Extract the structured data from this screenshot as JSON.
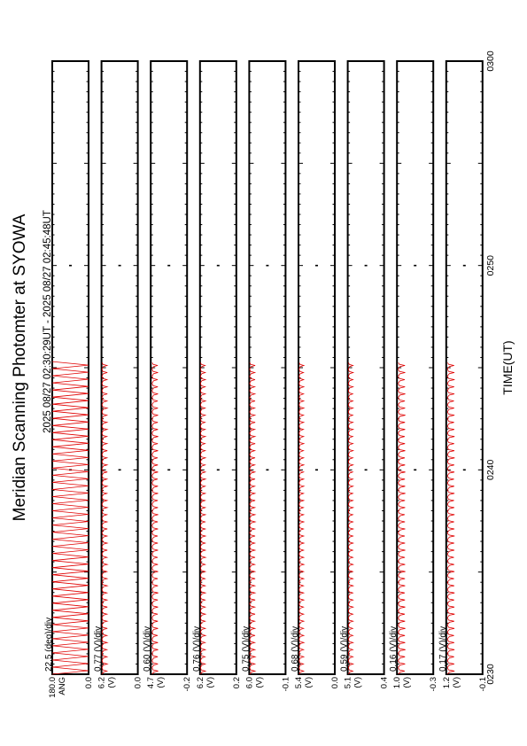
{
  "title": "Meridian Scanning Photomter at SYOWA",
  "time_range": "2025 08/27 02:30:29UT - 2025 08/27 02:45:48UT",
  "colors": {
    "trace": "#e00000",
    "frame": "#000000"
  },
  "chart_data": {
    "type": "line",
    "orientation": "rotated-90",
    "title": "Meridian Scanning Photomter at SYOWA",
    "xlabel": "TIME(UT)",
    "x_ticks": [
      "0230",
      "0240",
      "0250",
      "0300"
    ],
    "x_range_minutes": [
      0,
      30
    ],
    "data_end_minute": 15.3,
    "scan_count": 44,
    "panels": [
      {
        "name": "angle",
        "scale": "22.5 (deg)/div",
        "ticks": [
          "180.0",
          "0.0"
        ],
        "unit_glyphs": "ANG",
        "range": [
          0.0,
          180.0
        ],
        "baseline": 0.0,
        "peak": 180.0,
        "shape": "triangle"
      },
      {
        "name": "ch1",
        "scale": "0.77 (V)/div",
        "ticks": [
          "6.2",
          "0.0"
        ],
        "unit_glyphs": "(V)",
        "range": [
          0.0,
          6.2
        ],
        "baseline": 0.1,
        "peak": 1.0,
        "shape": "spike"
      },
      {
        "name": "ch2",
        "scale": "0.60 (V)/div",
        "ticks": [
          "4.7",
          "-0.2"
        ],
        "unit_glyphs": "(V)",
        "range": [
          -0.2,
          4.7
        ],
        "baseline": 0.0,
        "peak": 0.8,
        "shape": "spike"
      },
      {
        "name": "ch3",
        "scale": "0.76 (V)/div",
        "ticks": [
          "6.2",
          "0.2"
        ],
        "unit_glyphs": "(V)",
        "range": [
          0.2,
          6.2
        ],
        "baseline": 0.3,
        "peak": 1.1,
        "shape": "spike"
      },
      {
        "name": "ch4",
        "scale": "0.75 (V)/div",
        "ticks": [
          "6.0",
          "-0.1"
        ],
        "unit_glyphs": "(V)",
        "range": [
          -0.1,
          6.0
        ],
        "baseline": 0.0,
        "peak": 0.9,
        "shape": "spike"
      },
      {
        "name": "ch5",
        "scale": "0.68 (V)/div",
        "ticks": [
          "5.4",
          "0.0"
        ],
        "unit_glyphs": "(V)",
        "range": [
          0.0,
          5.4
        ],
        "baseline": 0.1,
        "peak": 0.8,
        "shape": "spike"
      },
      {
        "name": "ch6",
        "scale": "0.59 (V)/div",
        "ticks": [
          "5.1",
          "0.4"
        ],
        "unit_glyphs": "(V)",
        "range": [
          0.4,
          5.1
        ],
        "baseline": 0.5,
        "peak": 1.1,
        "shape": "spike"
      },
      {
        "name": "ch7",
        "scale": "0.16 (V)/div",
        "ticks": [
          "1.0",
          "-0.3"
        ],
        "unit_glyphs": "(V)",
        "range": [
          -0.3,
          1.0
        ],
        "baseline": -0.25,
        "peak": 0.0,
        "shape": "spike"
      },
      {
        "name": "ch8",
        "scale": "0.17 (V)/div",
        "ticks": [
          "1.2",
          "-0.1"
        ],
        "unit_glyphs": "(V)",
        "range": [
          -0.1,
          1.2
        ],
        "baseline": -0.05,
        "peak": 0.2,
        "shape": "spike"
      }
    ]
  }
}
